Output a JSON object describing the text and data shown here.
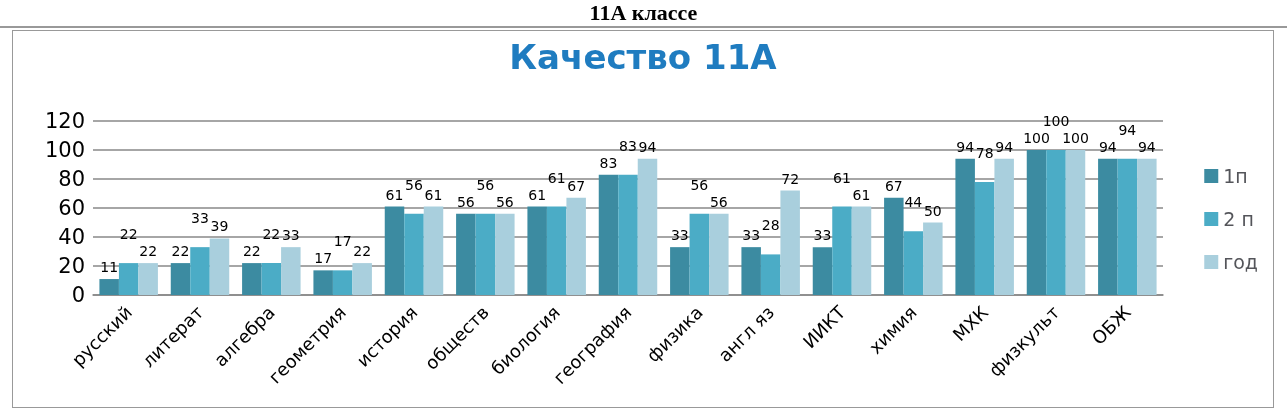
{
  "chart_data": {
    "type": "bar",
    "title": "Качество 11А",
    "annotations": [
      "11А классе"
    ],
    "categories": [
      "русский",
      "литерат",
      "алгебра",
      "геометрия",
      "история",
      "обществ",
      "биология",
      "география",
      "физика",
      "англ яз",
      "ИИКТ",
      "химия",
      "МХК",
      "физкульт",
      "ОБЖ"
    ],
    "series": [
      {
        "name": "1п",
        "color": "#3c8ba1",
        "values": [
          11,
          22,
          22,
          17,
          61,
          56,
          61,
          83,
          33,
          33,
          33,
          67,
          94,
          100,
          94
        ]
      },
      {
        "name": "2 п",
        "color": "#4bacc6",
        "values": [
          22,
          33,
          22,
          17,
          56,
          56,
          61,
          83,
          56,
          28,
          61,
          44,
          78,
          100,
          94
        ]
      },
      {
        "name": "год",
        "color": "#a9cfdd",
        "values": [
          22,
          39,
          33,
          22,
          61,
          56,
          67,
          94,
          56,
          72,
          61,
          50,
          94,
          100,
          94
        ]
      }
    ],
    "ylim": [
      0,
      120
    ],
    "yticks": [
      0,
      20,
      40,
      60,
      80,
      100,
      120
    ],
    "grid": "y",
    "legend": "right",
    "data_labels": true
  }
}
